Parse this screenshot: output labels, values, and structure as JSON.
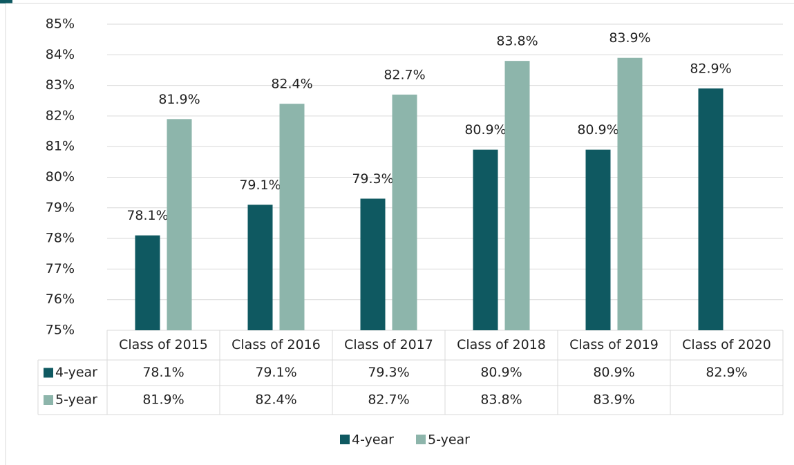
{
  "chart_data": {
    "type": "bar",
    "categories": [
      "Class of 2015",
      "Class of 2016",
      "Class of 2017",
      "Class of 2018",
      "Class of 2019",
      "Class of 2020"
    ],
    "series": [
      {
        "name": "4-year",
        "color": "#0f5961",
        "values": [
          78.1,
          79.1,
          79.3,
          80.9,
          80.9,
          82.9
        ],
        "value_labels": [
          "78.1%",
          "79.1%",
          "79.3%",
          "80.9%",
          "80.9%",
          "82.9%"
        ]
      },
      {
        "name": "5-year",
        "color": "#8db5ab",
        "values": [
          81.9,
          82.4,
          82.7,
          83.8,
          83.9,
          null
        ],
        "value_labels": [
          "81.9%",
          "82.4%",
          "82.7%",
          "83.8%",
          "83.9%",
          null
        ]
      }
    ],
    "ylim": [
      75,
      85
    ],
    "yticks": [
      {
        "value": 75,
        "label": "75%"
      },
      {
        "value": 76,
        "label": "76%"
      },
      {
        "value": 77,
        "label": "77%"
      },
      {
        "value": 78,
        "label": "78%"
      },
      {
        "value": 79,
        "label": "79%"
      },
      {
        "value": 80,
        "label": "80%"
      },
      {
        "value": 81,
        "label": "81%"
      },
      {
        "value": 82,
        "label": "82%"
      },
      {
        "value": 83,
        "label": "83%"
      },
      {
        "value": 84,
        "label": "84%"
      },
      {
        "value": 85,
        "label": "85%"
      }
    ],
    "grid": true,
    "legend": "bottom",
    "data_table": true
  }
}
